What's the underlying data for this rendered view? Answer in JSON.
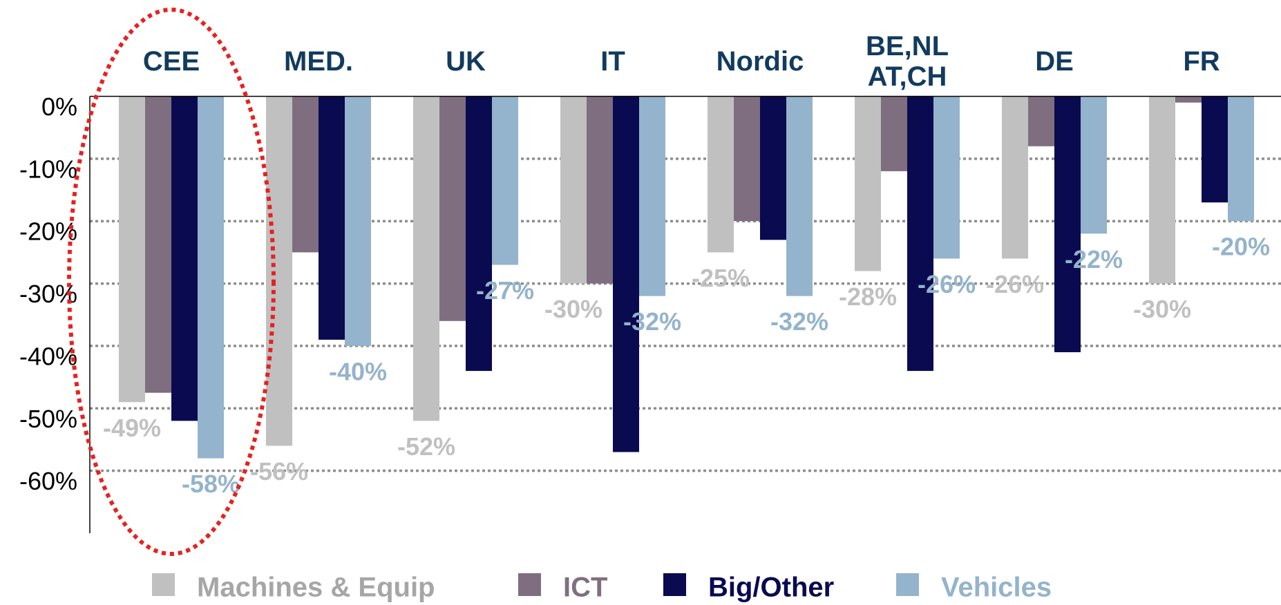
{
  "chart_data": {
    "type": "bar",
    "categories": [
      "CEE",
      "MED.",
      "UK",
      "IT",
      "Nordic",
      "BE,NL\nAT,CH",
      "DE",
      "FR"
    ],
    "series": [
      {
        "name": "Machines & Equip",
        "color": "#c0c0c0",
        "label_color": "#a6a6a6",
        "values": [
          -49,
          -56,
          -52,
          -30,
          -25,
          -28,
          -26,
          -30
        ],
        "value_labels": [
          "-49%",
          "-56%",
          "-52%",
          "-30%",
          "-25%",
          "-28%",
          "-26%",
          "-30%"
        ]
      },
      {
        "name": "ICT",
        "color": "#7f6e80",
        "label_color": "#7f6e80",
        "values": [
          -47.5,
          -25,
          -36,
          -30,
          -20,
          -12,
          -8,
          -1
        ]
      },
      {
        "name": "Big/Other",
        "color": "#0a0a50",
        "label_color": "#0a0a50",
        "values": [
          -52,
          -39,
          -44,
          -57,
          -23,
          -44,
          -41,
          -17
        ]
      },
      {
        "name": "Vehicles",
        "color": "#94b3cc",
        "label_color": "#94b3cc",
        "values": [
          -58,
          -40,
          -27,
          -32,
          -32,
          -26,
          -22,
          -20
        ],
        "value_labels": [
          "-58%",
          "-40%",
          "-27%",
          "-32%",
          "-32%",
          "-26%",
          "-22%",
          "-20%"
        ]
      }
    ],
    "ylim": [
      -70,
      0
    ],
    "yticks": [
      {
        "value": 0,
        "label": "0%"
      },
      {
        "value": -10,
        "label": "-10%"
      },
      {
        "value": -20,
        "label": "-20%"
      },
      {
        "value": -30,
        "label": "-30%"
      },
      {
        "value": -40,
        "label": "-40%"
      },
      {
        "value": -50,
        "label": "-50%"
      },
      {
        "value": -60,
        "label": "-60%"
      }
    ],
    "grid": true,
    "legend": "bottom"
  }
}
